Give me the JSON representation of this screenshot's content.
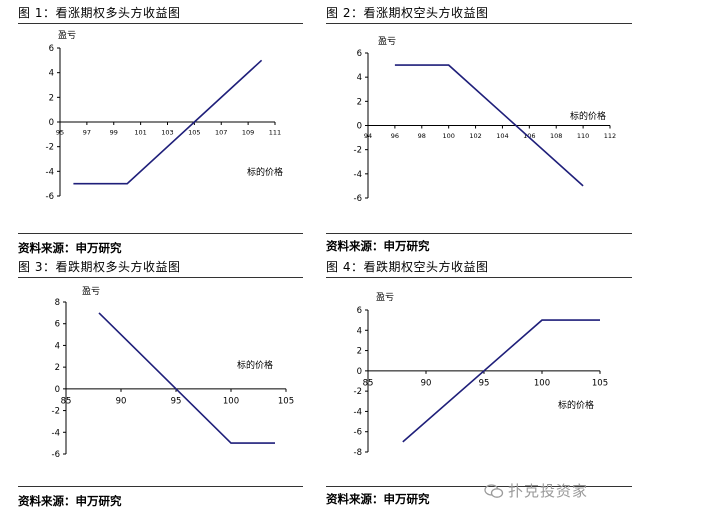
{
  "figures": [
    {
      "title": "图 1：看涨期权多头方收益图",
      "source": "资料来源：申万研究"
    },
    {
      "title": "图 2：看涨期权空头方收益图",
      "source": "资料来源：申万研究"
    },
    {
      "title": "图 3：看跌期权多头方收益图",
      "source": "资料来源：申万研究"
    },
    {
      "title": "图 4：看跌期权空头方收益图",
      "source": "资料来源：申万研究"
    }
  ],
  "watermark": "扑克投资家",
  "chart_data": [
    {
      "type": "line",
      "xlabel": "标的价格",
      "ylabel": "盈亏",
      "xlim": [
        95,
        111
      ],
      "ylim": [
        -6,
        6
      ],
      "xticks": [
        95,
        97,
        99,
        101,
        103,
        105,
        107,
        109,
        111
      ],
      "yticks": [
        -6,
        -4,
        -2,
        0,
        2,
        4,
        6
      ],
      "grid": false,
      "series": [
        {
          "color": "#1f1f7a",
          "x": [
            96,
            100,
            105,
            110
          ],
          "y": [
            -5,
            -5,
            0,
            5
          ]
        }
      ]
    },
    {
      "type": "line",
      "xlabel": "标的价格",
      "ylabel": "盈亏",
      "xlim": [
        94,
        112
      ],
      "ylim": [
        -6,
        6
      ],
      "xticks": [
        94,
        96,
        98,
        100,
        102,
        104,
        106,
        108,
        110,
        112
      ],
      "yticks": [
        -6,
        -4,
        -2,
        0,
        2,
        4,
        6
      ],
      "grid": false,
      "series": [
        {
          "color": "#1f1f7a",
          "x": [
            96,
            100,
            105,
            110
          ],
          "y": [
            5,
            5,
            0,
            -5
          ]
        }
      ]
    },
    {
      "type": "line",
      "xlabel": "标的价格",
      "ylabel": "盈亏",
      "xlim": [
        85,
        105
      ],
      "ylim": [
        -6,
        8
      ],
      "xticks": [
        85,
        90,
        95,
        100,
        105
      ],
      "yticks": [
        -6,
        -4,
        -2,
        0,
        2,
        4,
        6,
        8
      ],
      "grid": false,
      "series": [
        {
          "color": "#1f1f7a",
          "x": [
            88,
            100,
            104
          ],
          "y": [
            7,
            -5,
            -5
          ]
        }
      ]
    },
    {
      "type": "line",
      "xlabel": "标的价格",
      "ylabel": "盈亏",
      "xlim": [
        85,
        105
      ],
      "ylim": [
        -8,
        6
      ],
      "xticks": [
        85,
        90,
        95,
        100,
        105
      ],
      "yticks": [
        -8,
        -6,
        -4,
        -2,
        0,
        2,
        4,
        6
      ],
      "grid": false,
      "series": [
        {
          "color": "#1f1f7a",
          "x": [
            88,
            100,
            105
          ],
          "y": [
            -7,
            5,
            5
          ]
        }
      ]
    }
  ]
}
